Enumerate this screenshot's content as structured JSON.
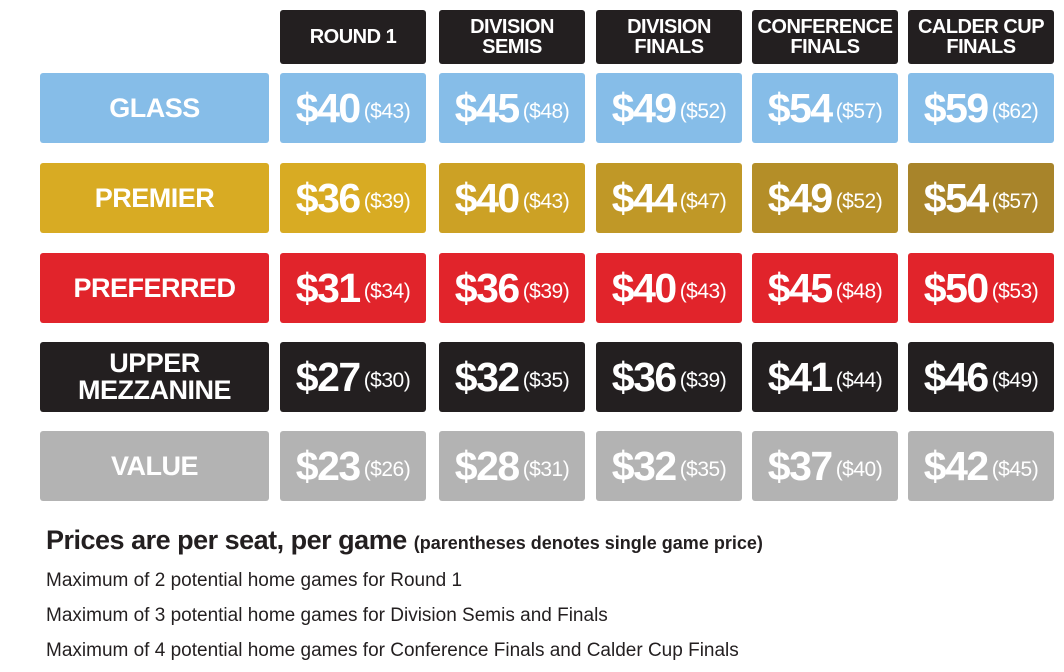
{
  "columns": [
    {
      "label": "ROUND 1"
    },
    {
      "label": "DIVISION\nSEMIS"
    },
    {
      "label": "DIVISION\nFINALS"
    },
    {
      "label": "CONFERENCE\nFINALS"
    },
    {
      "label": "CALDER CUP\nFINALS"
    }
  ],
  "rows": [
    {
      "label": "GLASS",
      "color": "#86bde8",
      "prices": [
        {
          "price": "$40",
          "single": "($43)"
        },
        {
          "price": "$45",
          "single": "($48)"
        },
        {
          "price": "$49",
          "single": "($52)"
        },
        {
          "price": "$54",
          "single": "($57)"
        },
        {
          "price": "$59",
          "single": "($62)"
        }
      ]
    },
    {
      "label": "PREMIER",
      "color": "#d8ab23",
      "gradient_end": "#a8842a",
      "prices": [
        {
          "price": "$36",
          "single": "($39)"
        },
        {
          "price": "$40",
          "single": "($43)"
        },
        {
          "price": "$44",
          "single": "($47)"
        },
        {
          "price": "$49",
          "single": "($52)"
        },
        {
          "price": "$54",
          "single": "($57)"
        }
      ]
    },
    {
      "label": "PREFERRED",
      "color": "#e1242b",
      "prices": [
        {
          "price": "$31",
          "single": "($34)"
        },
        {
          "price": "$36",
          "single": "($39)"
        },
        {
          "price": "$40",
          "single": "($43)"
        },
        {
          "price": "$45",
          "single": "($48)"
        },
        {
          "price": "$50",
          "single": "($53)"
        }
      ]
    },
    {
      "label": "UPPER\nMEZZANINE",
      "color": "#231f20",
      "prices": [
        {
          "price": "$27",
          "single": "($30)"
        },
        {
          "price": "$32",
          "single": "($35)"
        },
        {
          "price": "$36",
          "single": "($39)"
        },
        {
          "price": "$41",
          "single": "($44)"
        },
        {
          "price": "$46",
          "single": "($49)"
        }
      ]
    },
    {
      "label": "VALUE",
      "color": "#b3b3b3",
      "prices": [
        {
          "price": "$23",
          "single": "($26)"
        },
        {
          "price": "$28",
          "single": "($31)"
        },
        {
          "price": "$32",
          "single": "($35)"
        },
        {
          "price": "$37",
          "single": "($40)"
        },
        {
          "price": "$42",
          "single": "($45)"
        }
      ]
    }
  ],
  "notes": {
    "headline": "Prices are per seat, per game",
    "headline_sub": "(parentheses denotes single game price)",
    "lines": [
      "Maximum of 2 potential home games for Round 1",
      "Maximum of 3 potential home games for Division Semis and Finals",
      "Maximum of 4 potential home games for Conference Finals and Calder Cup Finals"
    ]
  }
}
